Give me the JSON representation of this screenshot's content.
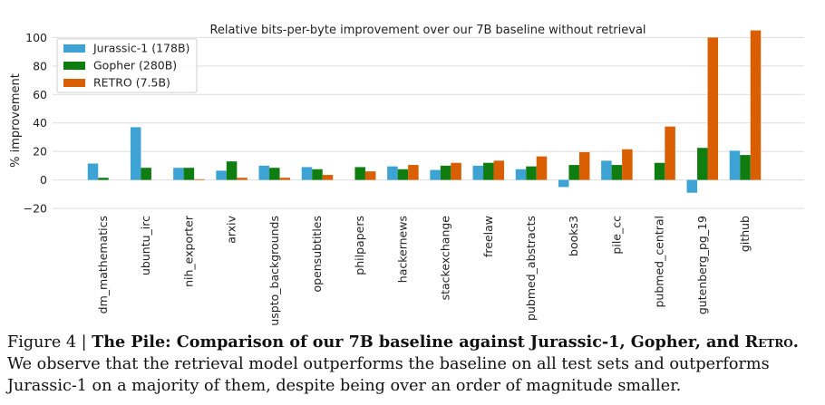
{
  "chart_data": {
    "type": "bar",
    "title": "Relative bits-per-byte improvement over our 7B baseline without retrieval",
    "ylabel": "% improvement",
    "xlabel": "",
    "ylim": [
      -20,
      106
    ],
    "yticks": [
      -20,
      0,
      20,
      40,
      60,
      80,
      100
    ],
    "ytick_labels": [
      "−20",
      "0",
      "20",
      "40",
      "60",
      "80",
      "100"
    ],
    "grid": true,
    "legend_position": "top-left",
    "categories": [
      "dm_mathematics",
      "ubuntu_irc",
      "nih_exporter",
      "arxiv",
      "uspto_backgrounds",
      "opensubtitles",
      "philpapers",
      "hackernews",
      "stackexchange",
      "freelaw",
      "pubmed_abstracts",
      "books3",
      "pile_cc",
      "pubmed_central",
      "gutenberg_pg_19",
      "github"
    ],
    "series": [
      {
        "name": "Jurassic-1 (178B)",
        "color": "#3ca3d4",
        "values": [
          11.5,
          37,
          8.5,
          6.5,
          10,
          9,
          null,
          9.5,
          7,
          10,
          7.5,
          -5,
          13.5,
          null,
          -9,
          20.5
        ]
      },
      {
        "name": "Gopher (280B)",
        "color": "#0f7d0f",
        "values": [
          1.5,
          8.5,
          8.5,
          13,
          8.5,
          7.5,
          9,
          7.5,
          10,
          12,
          9.5,
          10.5,
          10.5,
          12,
          22.5,
          17.5
        ]
      },
      {
        "name": "RETRO (7.5B)",
        "color": "#d95f02",
        "values": [
          null,
          null,
          0.5,
          1.5,
          1.5,
          3.5,
          6,
          10.5,
          12,
          13.5,
          16.5,
          19.5,
          21.5,
          37.5,
          100,
          105
        ]
      }
    ]
  },
  "caption": {
    "prefix": "Figure 4 | ",
    "bold_part": "The Pile: Comparison of our 7B baseline against Jurassic-1, Gopher, and ",
    "bold_sc": "Retro",
    "bold_end": ".",
    "text": " We observe that the retrieval model outperforms the baseline on all test sets and outperforms Jurassic-1 on a majority of them, despite being over an order of magnitude smaller."
  }
}
